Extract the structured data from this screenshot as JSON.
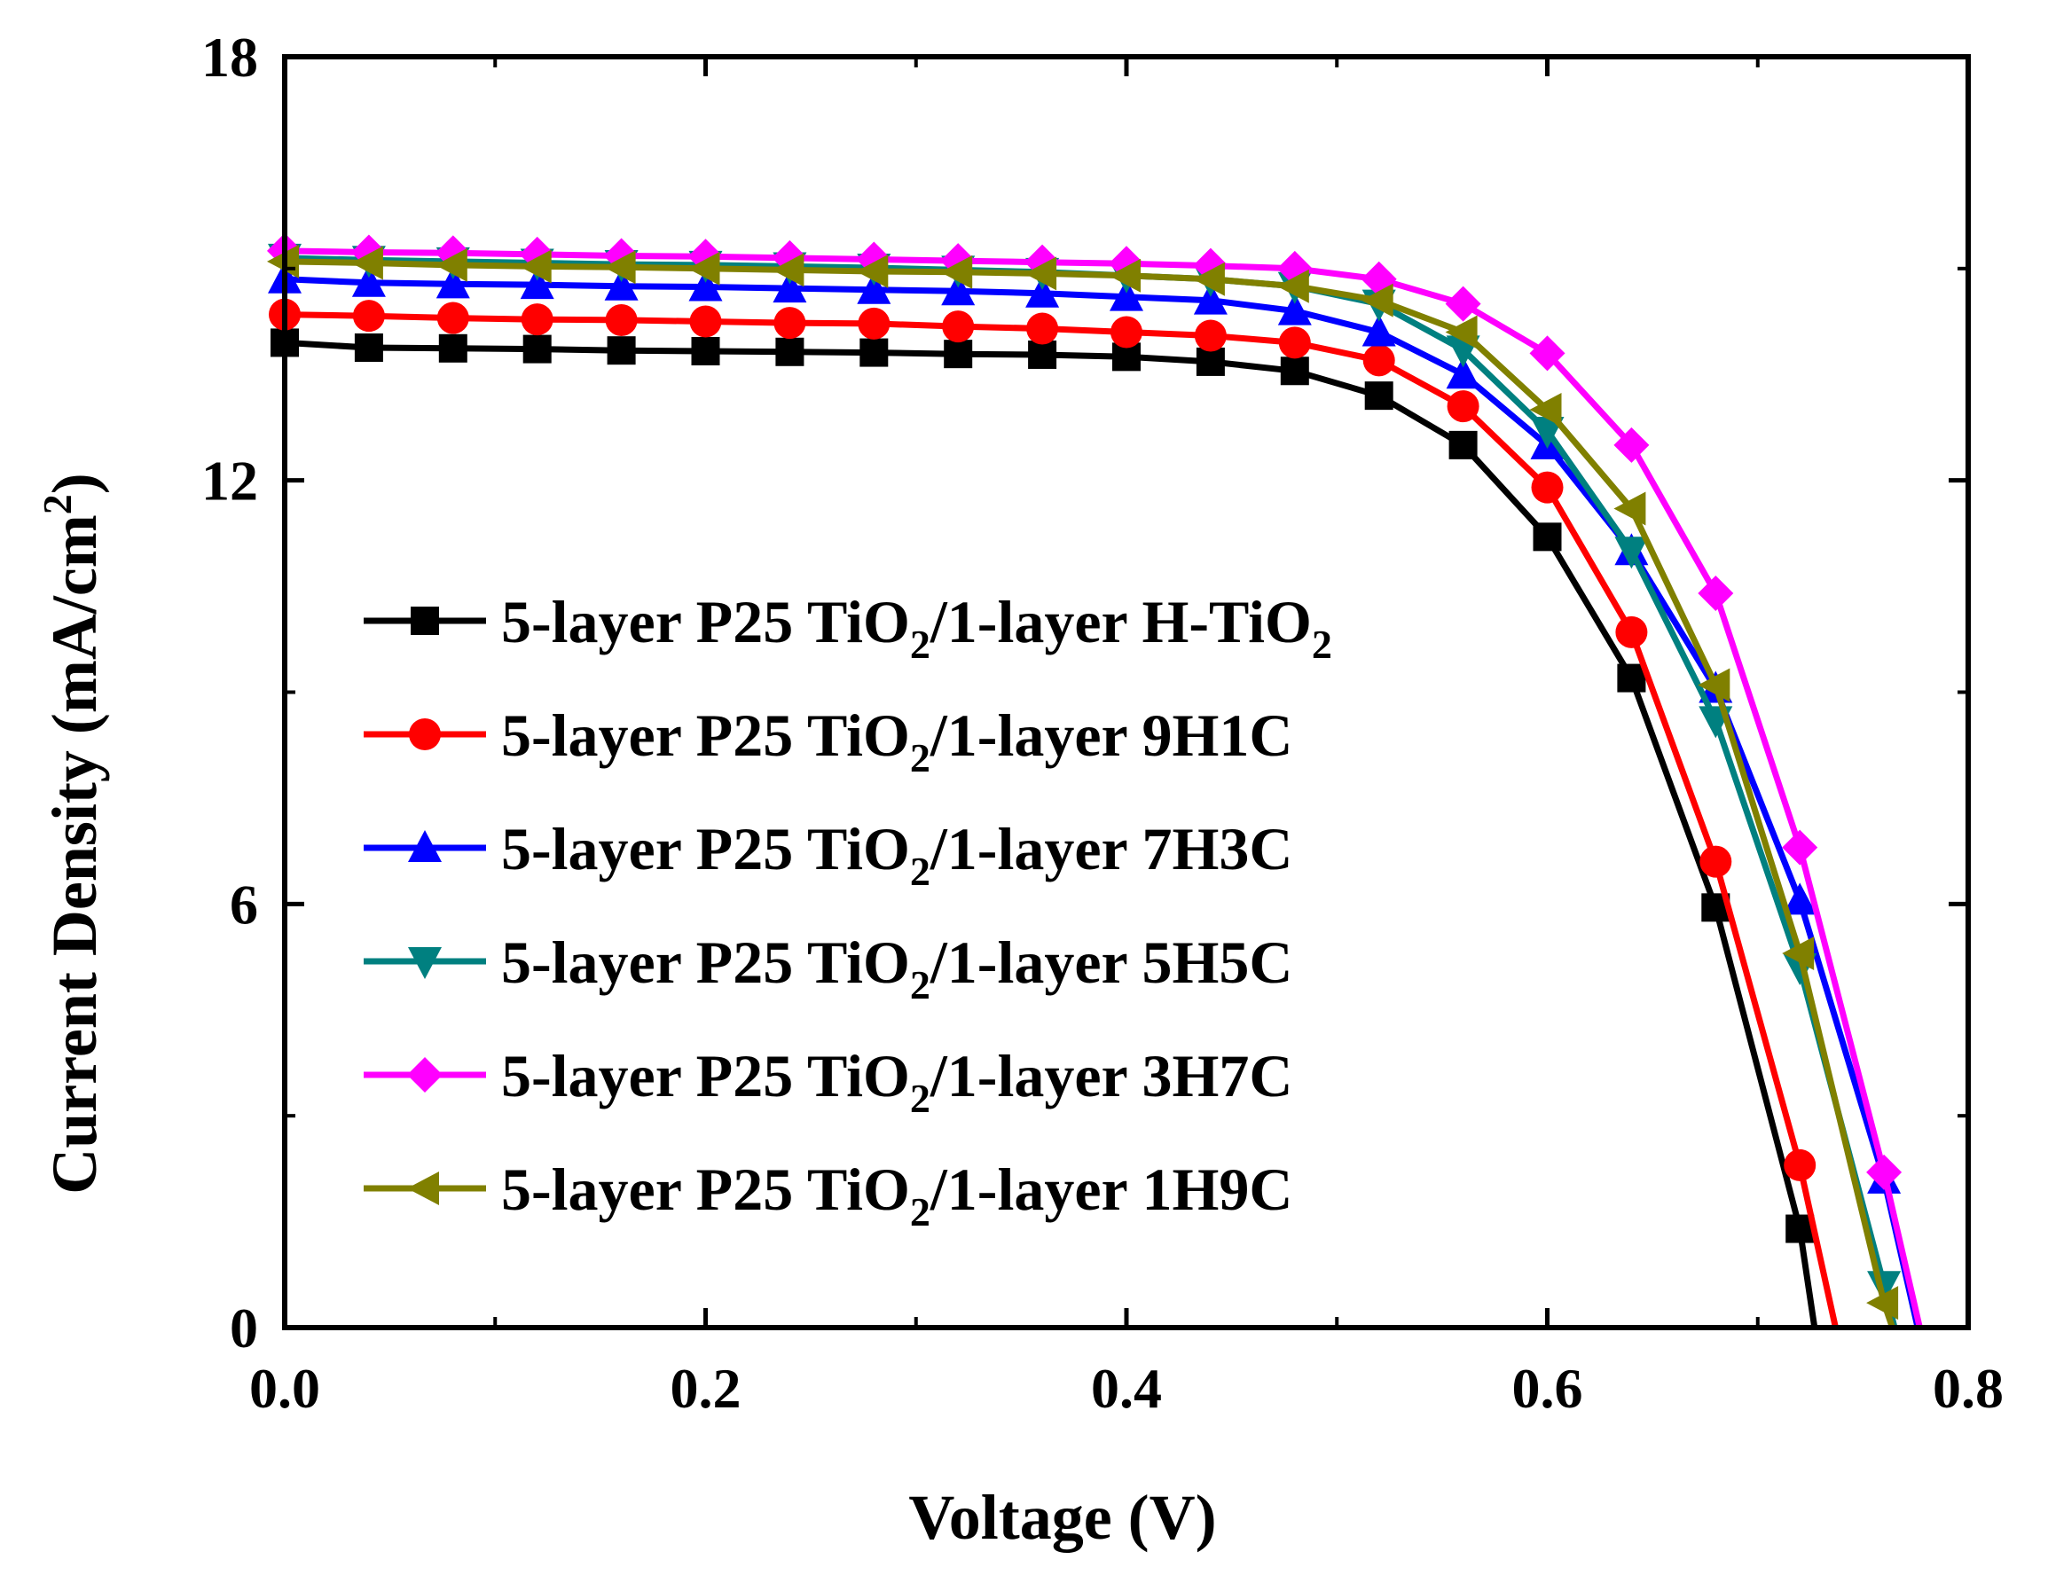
{
  "chart_data": {
    "type": "line",
    "title": "",
    "xlabel": "Voltage (V)",
    "ylabel": "Current Density (mA/cm",
    "ylabel_sup": "2",
    "ylabel_close": ")",
    "xlim": [
      0.0,
      0.8
    ],
    "ylim": [
      0,
      18
    ],
    "xticks": [
      0.0,
      0.2,
      0.4,
      0.6,
      0.8
    ],
    "xtick_labels": [
      "0.0",
      "0.2",
      "0.4",
      "0.6",
      "0.8"
    ],
    "yticks": [
      0,
      6,
      12,
      18
    ],
    "ytick_labels": [
      "0",
      "6",
      "12",
      "18"
    ],
    "legend_position": "center-left",
    "series": [
      {
        "name": "5-layer P25 TiO2/1-layer H-TiO2",
        "legend": {
          "prefix": "5-layer P25 TiO",
          "sub1": "2",
          "middle": "/1-layer H-TiO",
          "sub2": "2",
          "suffix": ""
        },
        "color": "#000000",
        "marker": "square",
        "x": [
          0.0,
          0.04,
          0.08,
          0.12,
          0.16,
          0.2,
          0.24,
          0.28,
          0.32,
          0.36,
          0.4,
          0.44,
          0.48,
          0.52,
          0.56,
          0.6,
          0.64,
          0.68,
          0.72,
          0.727
        ],
        "y": [
          13.95,
          13.88,
          13.87,
          13.86,
          13.84,
          13.83,
          13.82,
          13.81,
          13.79,
          13.78,
          13.75,
          13.68,
          13.55,
          13.2,
          12.5,
          11.2,
          9.2,
          5.95,
          1.4,
          0.0
        ]
      },
      {
        "name": "5-layer P25 TiO2/1-layer 9H1C",
        "legend": {
          "prefix": "5-layer P25 TiO",
          "sub1": "2",
          "middle": "/1-layer 9H1C",
          "sub2": "",
          "suffix": ""
        },
        "color": "#ff0000",
        "marker": "circle",
        "x": [
          0.0,
          0.04,
          0.08,
          0.12,
          0.16,
          0.2,
          0.24,
          0.28,
          0.32,
          0.36,
          0.4,
          0.44,
          0.48,
          0.52,
          0.56,
          0.6,
          0.64,
          0.68,
          0.72,
          0.737
        ],
        "y": [
          14.35,
          14.33,
          14.3,
          14.28,
          14.27,
          14.25,
          14.23,
          14.22,
          14.18,
          14.15,
          14.1,
          14.05,
          13.95,
          13.7,
          13.05,
          11.9,
          9.85,
          6.6,
          2.3,
          0.0
        ]
      },
      {
        "name": "5-layer P25 TiO2/1-layer 7H3C",
        "legend": {
          "prefix": "5-layer P25 TiO",
          "sub1": "2",
          "middle": "/1-layer 7H3C",
          "sub2": "",
          "suffix": ""
        },
        "color": "#0000ff",
        "marker": "triangle-up",
        "x": [
          0.0,
          0.04,
          0.08,
          0.12,
          0.16,
          0.2,
          0.24,
          0.28,
          0.32,
          0.36,
          0.4,
          0.44,
          0.48,
          0.52,
          0.56,
          0.6,
          0.64,
          0.68,
          0.72,
          0.76,
          0.776
        ],
        "y": [
          14.85,
          14.8,
          14.78,
          14.77,
          14.75,
          14.74,
          14.72,
          14.7,
          14.68,
          14.65,
          14.6,
          14.55,
          14.4,
          14.1,
          13.5,
          12.5,
          11.0,
          9.05,
          6.05,
          2.1,
          0.0
        ]
      },
      {
        "name": "5-layer P25 TiO2/1-layer 5H5C",
        "legend": {
          "prefix": "5-layer P25 TiO",
          "sub1": "2",
          "middle": "/1-layer 5H5C",
          "sub2": "",
          "suffix": ""
        },
        "color": "#008080",
        "marker": "triangle-down",
        "x": [
          0.0,
          0.04,
          0.08,
          0.12,
          0.16,
          0.2,
          0.24,
          0.28,
          0.32,
          0.36,
          0.4,
          0.44,
          0.48,
          0.52,
          0.56,
          0.6,
          0.64,
          0.68,
          0.72,
          0.76,
          0.765
        ],
        "y": [
          15.15,
          15.12,
          15.1,
          15.08,
          15.06,
          15.05,
          15.03,
          15.01,
          14.98,
          14.95,
          14.9,
          14.85,
          14.75,
          14.5,
          13.85,
          12.7,
          11.0,
          8.6,
          5.1,
          0.6,
          0.0
        ]
      },
      {
        "name": "5-layer P25 TiO2/1-layer 3H7C",
        "legend": {
          "prefix": "5-layer P25 TiO",
          "sub1": "2",
          "middle": "/1-layer 3H7C",
          "sub2": "",
          "suffix": ""
        },
        "color": "#ff00ff",
        "marker": "diamond",
        "x": [
          0.0,
          0.04,
          0.08,
          0.12,
          0.16,
          0.2,
          0.24,
          0.28,
          0.32,
          0.36,
          0.4,
          0.44,
          0.48,
          0.52,
          0.56,
          0.6,
          0.64,
          0.68,
          0.72,
          0.76,
          0.777
        ],
        "y": [
          15.25,
          15.23,
          15.22,
          15.2,
          15.18,
          15.17,
          15.15,
          15.13,
          15.11,
          15.09,
          15.07,
          15.04,
          15.0,
          14.85,
          14.5,
          13.8,
          12.5,
          10.4,
          6.8,
          2.2,
          0.0
        ]
      },
      {
        "name": "5-layer P25 TiO2/1-layer 1H9C",
        "legend": {
          "prefix": "5-layer P25 TiO",
          "sub1": "2",
          "middle": "/1-layer 1H9C",
          "sub2": "",
          "suffix": ""
        },
        "color": "#808000",
        "marker": "triangle-left",
        "x": [
          0.0,
          0.04,
          0.08,
          0.12,
          0.16,
          0.2,
          0.24,
          0.28,
          0.32,
          0.36,
          0.4,
          0.44,
          0.48,
          0.52,
          0.56,
          0.6,
          0.64,
          0.68,
          0.72,
          0.76,
          0.764
        ],
        "y": [
          15.1,
          15.08,
          15.05,
          15.03,
          15.02,
          15.0,
          14.98,
          14.96,
          14.95,
          14.93,
          14.9,
          14.85,
          14.75,
          14.55,
          14.1,
          13.0,
          11.6,
          9.1,
          5.3,
          0.35,
          0.0
        ]
      }
    ]
  }
}
